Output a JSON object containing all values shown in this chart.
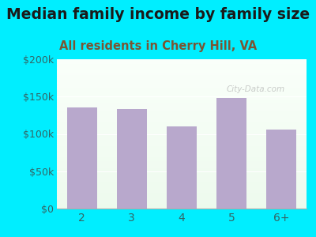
{
  "title": "Median family income by family size",
  "subtitle": "All residents in Cherry Hill, VA",
  "categories": [
    "2",
    "3",
    "4",
    "5",
    "6+"
  ],
  "values": [
    135000,
    133000,
    110000,
    148000,
    106000
  ],
  "bar_color": "#b8a8cc",
  "background_outer": "#00eeff",
  "ylim": [
    0,
    200000
  ],
  "yticks": [
    0,
    50000,
    100000,
    150000,
    200000
  ],
  "ytick_labels": [
    "$0",
    "$50k",
    "$100k",
    "$150k",
    "$200k"
  ],
  "title_fontsize": 13.5,
  "subtitle_fontsize": 10.5,
  "title_color": "#1a1a1a",
  "subtitle_color": "#7a5533",
  "tick_color": "#336666",
  "watermark": "City-Data.com",
  "grid_color": "#ccddcc"
}
